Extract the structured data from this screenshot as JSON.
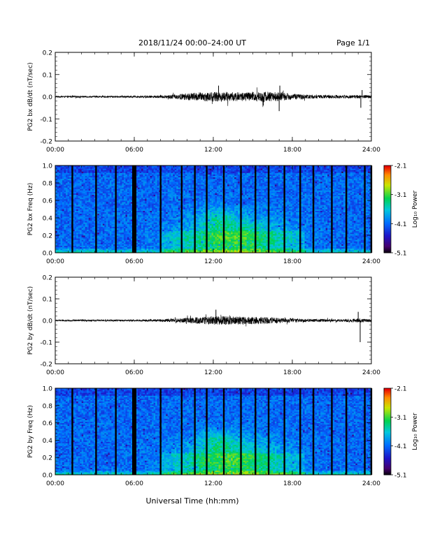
{
  "header": {
    "title": "2018/11/24  00:00–24:00 UT",
    "page": "Page 1/1"
  },
  "xlabel": "Universal Time (hh:mm)",
  "chart_data": [
    {
      "type": "line",
      "ylabel": "PG2 bx dB/dt (nT/sec)",
      "xlim": [
        0,
        24
      ],
      "ylim": [
        -0.2,
        0.2
      ],
      "x_ticks": [
        "00:00",
        "06:00",
        "12:00",
        "18:00",
        "24:00"
      ],
      "y_ticks": [
        "0.2",
        "0.1",
        "0.0",
        "-0.1",
        "-0.2"
      ],
      "noise_profile_x": [
        0,
        2,
        4,
        6,
        8,
        9,
        10,
        11,
        12,
        13,
        14,
        15,
        16,
        17,
        18,
        19,
        20,
        21,
        22,
        23,
        24
      ],
      "noise_profile_amplitude": [
        0.003,
        0.004,
        0.004,
        0.004,
        0.006,
        0.01,
        0.016,
        0.02,
        0.022,
        0.022,
        0.02,
        0.022,
        0.024,
        0.02,
        0.014,
        0.01,
        0.008,
        0.008,
        0.007,
        0.008,
        0.007
      ],
      "spikes": [
        {
          "x": 12.4,
          "y": 0.05
        },
        {
          "x": 15.8,
          "y": -0.04
        },
        {
          "x": 17.0,
          "y": -0.065
        },
        {
          "x": 17.05,
          "y": 0.05
        },
        {
          "x": 23.2,
          "y": -0.05
        },
        {
          "x": 23.3,
          "y": 0.03
        }
      ]
    },
    {
      "type": "heatmap",
      "ylabel": "PG2 bx Freq (Hz)",
      "xlim": [
        0,
        24
      ],
      "ylim": [
        0.0,
        1.0
      ],
      "x_ticks": [
        "00:00",
        "06:00",
        "12:00",
        "18:00",
        "24:00"
      ],
      "y_ticks": [
        "1.0",
        "0.8",
        "0.6",
        "0.4",
        "0.2",
        "0.0"
      ],
      "colorbar": {
        "label": "Log₁₀ Power",
        "ticks": [
          "-2.1",
          "-3.1",
          "-4.1",
          "-5.1"
        ],
        "range": [
          -5.1,
          -2.1
        ]
      },
      "data_gaps_hours": [
        1.3,
        3.1,
        4.6,
        6.0,
        8.0,
        9.6,
        10.6,
        11.5,
        12.8,
        14.1,
        15.2,
        16.2,
        17.4,
        18.6,
        19.6,
        21.0,
        22.1,
        23.5,
        24.0
      ],
      "enhancement": {
        "center_hours": 13.6,
        "width_hours": 4.0,
        "peak_freq_hz": 0.4,
        "note": ""
      }
    },
    {
      "type": "line",
      "ylabel": "PG2 by dB/dt (nT/sec)",
      "xlim": [
        0,
        24
      ],
      "ylim": [
        -0.2,
        0.2
      ],
      "x_ticks": [
        "00:00",
        "06:00",
        "12:00",
        "18:00",
        "24:00"
      ],
      "y_ticks": [
        "0.2",
        "0.1",
        "0.0",
        "-0.1",
        "-0.2"
      ],
      "noise_profile_x": [
        0,
        2,
        4,
        6,
        8,
        9,
        10,
        11,
        12,
        13,
        14,
        15,
        16,
        17,
        18,
        19,
        20,
        21,
        22,
        23,
        24
      ],
      "noise_profile_amplitude": [
        0.003,
        0.004,
        0.004,
        0.004,
        0.006,
        0.008,
        0.012,
        0.016,
        0.02,
        0.02,
        0.018,
        0.018,
        0.016,
        0.012,
        0.01,
        0.008,
        0.006,
        0.006,
        0.006,
        0.01,
        0.006
      ],
      "spikes": [
        {
          "x": 12.2,
          "y": 0.05
        },
        {
          "x": 23.0,
          "y": 0.04
        },
        {
          "x": 23.15,
          "y": -0.1
        }
      ]
    },
    {
      "type": "heatmap",
      "ylabel": "PG2 by Freq (Hz)",
      "xlim": [
        0,
        24
      ],
      "ylim": [
        0.0,
        1.0
      ],
      "x_ticks": [
        "00:00",
        "06:00",
        "12:00",
        "18:00",
        "24:00"
      ],
      "y_ticks": [
        "1.0",
        "0.8",
        "0.6",
        "0.4",
        "0.2",
        "0.0"
      ],
      "colorbar": {
        "label": "Log₁₀ Power",
        "ticks": [
          "-2.1",
          "-3.1",
          "-4.1",
          "-5.1"
        ],
        "range": [
          -5.1,
          -2.1
        ]
      },
      "data_gaps_hours": [
        1.3,
        3.1,
        4.6,
        6.0,
        8.0,
        9.6,
        10.6,
        11.5,
        12.8,
        14.1,
        15.2,
        16.2,
        17.4,
        18.6,
        19.6,
        21.0,
        22.1,
        23.5,
        24.0
      ],
      "enhancement": {
        "center_hours": 13.4,
        "width_hours": 4.0,
        "peak_freq_hz": 0.4,
        "note": ""
      }
    }
  ]
}
